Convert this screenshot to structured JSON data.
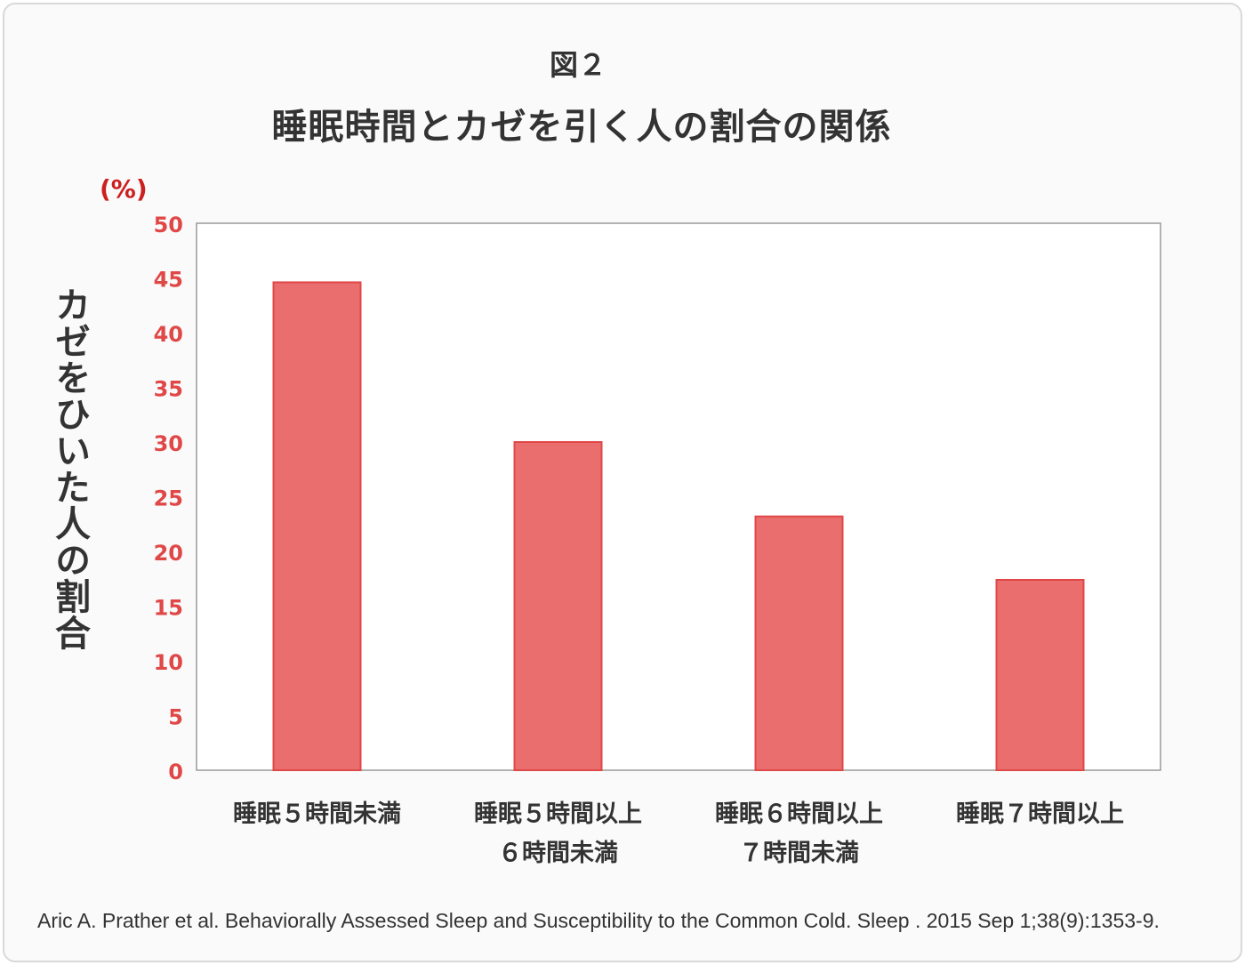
{
  "figure": {
    "label": "図２",
    "title": "睡眠時間とカゼを引く人の割合の関係",
    "unit": "(%)",
    "ylabel": "カゼをひいた人の割合",
    "source": "Aric A. Prather et al. Behaviorally Assessed Sleep and Susceptibility to the Common Cold. Sleep . 2015 Sep 1;38(9):1353-9."
  },
  "colors": {
    "bar_fill": "#ea6e6e",
    "bar_stroke": "#e04848",
    "tick_label": "#e04848",
    "unit_label": "#cc1f1f",
    "text": "#333333",
    "plot_border": "#999999"
  },
  "chart_data": {
    "type": "bar",
    "categories": [
      [
        "睡眠５時間未満"
      ],
      [
        "睡眠５時間以上",
        "６時間未満"
      ],
      [
        "睡眠６時間以上",
        "７時間未満"
      ],
      [
        "睡眠７時間以上"
      ]
    ],
    "values": [
      44.6,
      30.0,
      23.2,
      17.4
    ],
    "title": "睡眠時間とカゼを引く人の割合の関係",
    "ylabel": "カゼをひいた人の割合",
    "xlabel": "",
    "ylim": [
      0,
      50
    ],
    "yticks": [
      0,
      5,
      10,
      15,
      20,
      25,
      30,
      35,
      40,
      45,
      50
    ],
    "grid": false,
    "legend": "none"
  }
}
